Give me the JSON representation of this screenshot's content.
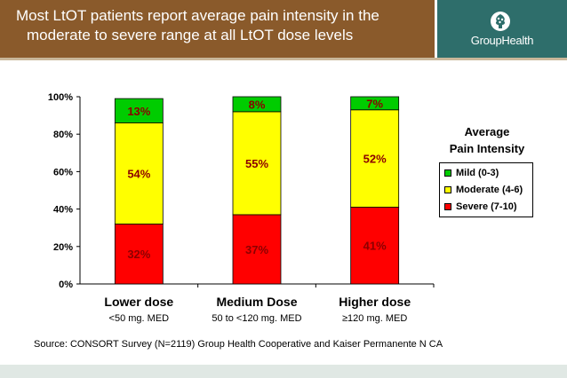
{
  "header": {
    "title_line1": "Most LtOT patients report average pain intensity in the",
    "title_line2": "moderate to severe range at all LtOT dose levels",
    "logo_text": "GroupHealth",
    "logo_icon": "group-health-tree-icon",
    "title_bg": "#8a5a2b",
    "logo_bg": "#2e6e6b"
  },
  "chart_data": {
    "type": "bar",
    "stacked": true,
    "categories": [
      "Lower dose",
      "Medium Dose",
      "Higher dose"
    ],
    "category_sublabels": [
      "<50 mg. MED",
      "50 to <120 mg. MED",
      "≥120 mg. MED"
    ],
    "series": [
      {
        "name": "Severe (7-10)",
        "color": "#ff0000",
        "values": [
          32,
          37,
          41
        ],
        "labels": [
          "32%",
          "37%",
          "41%"
        ]
      },
      {
        "name": "Moderate (4-6)",
        "color": "#ffff00",
        "values": [
          54,
          55,
          52
        ],
        "labels": [
          "54%",
          "55%",
          "52%"
        ]
      },
      {
        "name": "Mild (0-3)",
        "color": "#00cc00",
        "values": [
          13,
          8,
          7
        ],
        "labels": [
          "13%",
          "8%",
          "7%"
        ]
      }
    ],
    "ylim": [
      0,
      100
    ],
    "yticks": [
      "0%",
      "20%",
      "40%",
      "60%",
      "80%",
      "100%"
    ],
    "grid": false,
    "label_color": "#8b0000",
    "legend": {
      "title_line1": "Average",
      "title_line2": "Pain Intensity",
      "position": "right",
      "items": [
        "Mild (0-3)",
        "Moderate (4-6)",
        "Severe (7-10)"
      ],
      "colors": [
        "#00cc00",
        "#ffff00",
        "#ff0000"
      ]
    }
  },
  "source": "Source: CONSORT Survey (N=2119)   Group Health Cooperative and Kaiser Permanente N CA"
}
